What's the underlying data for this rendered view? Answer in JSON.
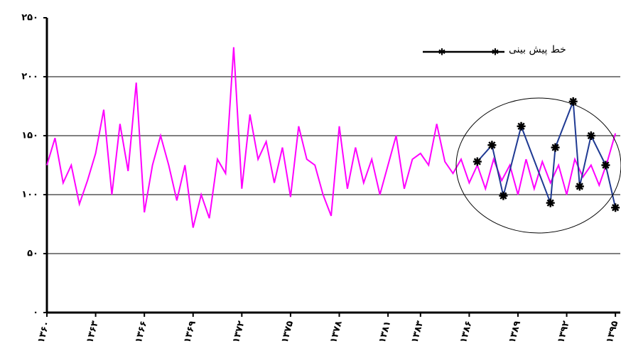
{
  "chart_data": {
    "type": "line",
    "legend_label": "خط پیش بینی",
    "xlim": [
      1360,
      1395.3
    ],
    "ylim": [
      0,
      250
    ],
    "xticks": [
      {
        "value": 1360,
        "label": "۱۳۶۰"
      },
      {
        "value": 1363,
        "label": "۱۳۶۳"
      },
      {
        "value": 1366,
        "label": "۱۳۶۶"
      },
      {
        "value": 1369,
        "label": "۱۳۶۹"
      },
      {
        "value": 1372,
        "label": "۱۳۷۲"
      },
      {
        "value": 1375,
        "label": "۱۳۷۵"
      },
      {
        "value": 1378,
        "label": "۱۳۷۸"
      },
      {
        "value": 1381,
        "label": "۱۳۸۱"
      },
      {
        "value": 1383,
        "label": "۱۳۸۳"
      },
      {
        "value": 1386,
        "label": "۱۳۸۶"
      },
      {
        "value": 1389,
        "label": "۱۳۸۹"
      },
      {
        "value": 1392,
        "label": "۱۳۹۲"
      },
      {
        "value": 1395,
        "label": "۱۳۹۵"
      }
    ],
    "yticks": [
      {
        "value": 0,
        "label": "۰"
      },
      {
        "value": 50,
        "label": "۵۰"
      },
      {
        "value": 100,
        "label": "۱۰۰"
      },
      {
        "value": 150,
        "label": "۱۵۰"
      },
      {
        "value": 200,
        "label": "۲۰۰"
      },
      {
        "value": 250,
        "label": "۲۵۰"
      }
    ],
    "grid": true,
    "series": [
      {
        "color": "#ff00ff",
        "x": [
          1360,
          1360.5,
          1361,
          1361.5,
          1362,
          1362.5,
          1363,
          1363.5,
          1364,
          1364.5,
          1365,
          1365.5,
          1366,
          1366.5,
          1367,
          1367.5,
          1368,
          1368.5,
          1369,
          1369.5,
          1370,
          1370.5,
          1371,
          1371.5,
          1372,
          1372.5,
          1373,
          1373.5,
          1374,
          1374.5,
          1375,
          1375.5,
          1376,
          1376.5,
          1377,
          1377.5,
          1378,
          1378.5,
          1379,
          1379.5,
          1380,
          1380.5,
          1381,
          1381.5,
          1382,
          1382.5,
          1383,
          1383.5,
          1384,
          1384.5,
          1385,
          1385.5,
          1386,
          1386.5,
          1387,
          1387.5,
          1388,
          1388.5,
          1389,
          1389.5,
          1390,
          1390.5,
          1391,
          1391.5,
          1392,
          1392.5,
          1393,
          1393.5,
          1394,
          1394.5,
          1395
        ],
        "values": [
          125,
          148,
          110,
          125,
          92,
          112,
          135,
          172,
          100,
          160,
          120,
          195,
          85,
          125,
          150,
          125,
          95,
          125,
          72,
          100,
          80,
          130,
          118,
          225,
          105,
          168,
          130,
          145,
          110,
          140,
          98,
          158,
          130,
          125,
          100,
          82,
          158,
          105,
          140,
          110,
          130,
          100,
          125,
          150,
          105,
          130,
          135,
          125,
          160,
          128,
          118,
          130,
          110,
          125,
          105,
          130,
          112,
          125,
          100,
          130,
          105,
          128,
          110,
          125,
          100,
          130,
          115,
          125,
          108,
          128,
          152
        ]
      },
      {
        "color": "#1f3a93",
        "marker": "star",
        "x": [
          1386.5,
          1387.4,
          1388.1,
          1389.2,
          1391.0,
          1391.3,
          1392.4,
          1392.8,
          1393.5,
          1394.4,
          1395.0
        ],
        "values": [
          128,
          142,
          99,
          158,
          93,
          140,
          179,
          107,
          150,
          125,
          89
        ]
      }
    ]
  }
}
